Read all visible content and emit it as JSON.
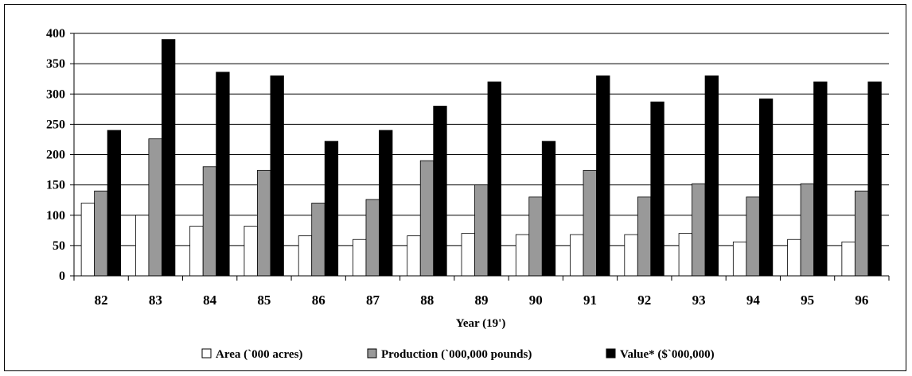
{
  "chart_data": {
    "type": "bar",
    "title": "",
    "xlabel": "Year (19')",
    "ylabel": "",
    "ylim": [
      0,
      400
    ],
    "yticks": [
      0,
      50,
      100,
      150,
      200,
      250,
      300,
      350,
      400
    ],
    "grid": true,
    "legend_position": "bottom",
    "categories": [
      "82",
      "83",
      "84",
      "85",
      "86",
      "87",
      "88",
      "89",
      "90",
      "91",
      "92",
      "93",
      "94",
      "95",
      "96"
    ],
    "series": [
      {
        "name": "Area (`000 acres)",
        "color": "#ffffff",
        "values": [
          120,
          100,
          82,
          82,
          66,
          60,
          66,
          70,
          68,
          68,
          68,
          70,
          56,
          60,
          56
        ]
      },
      {
        "name": "Production (`000,000 pounds)",
        "color": "#999999",
        "values": [
          140,
          226,
          180,
          174,
          120,
          126,
          190,
          150,
          130,
          174,
          130,
          152,
          130,
          152,
          140
        ]
      },
      {
        "name": "Value* ($`000,000)",
        "color": "#000000",
        "values": [
          240,
          390,
          336,
          330,
          222,
          240,
          280,
          320,
          222,
          330,
          287,
          330,
          292,
          320,
          320
        ]
      }
    ]
  }
}
